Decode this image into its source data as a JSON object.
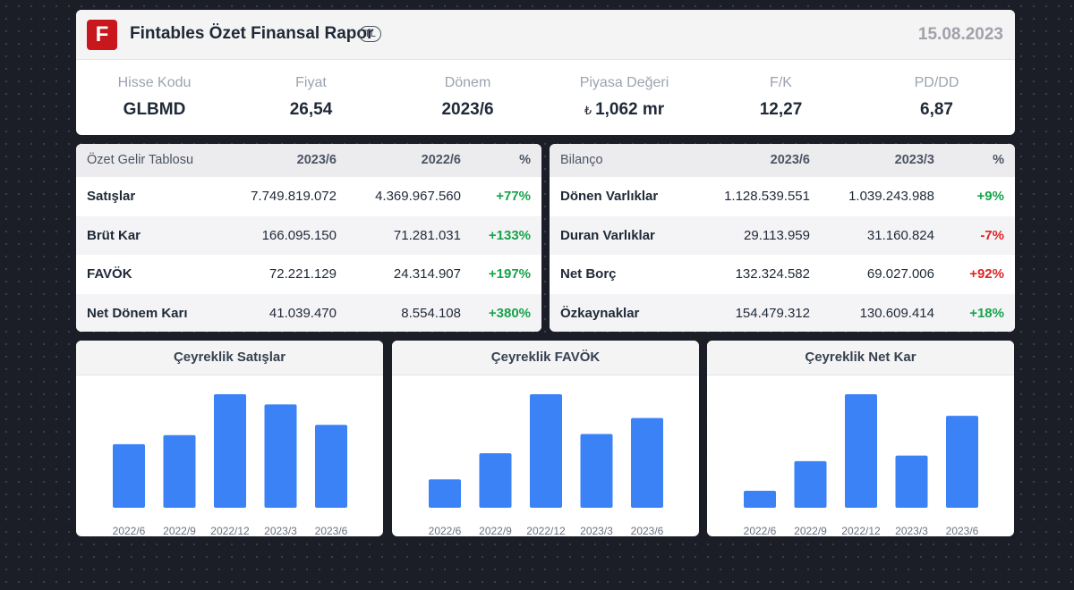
{
  "header": {
    "logo_letter": "F",
    "title": "Fintables Özet Finansal Rapor",
    "currency": "TL",
    "date": "15.08.2023"
  },
  "metrics": [
    {
      "label": "Hisse Kodu",
      "value": "GLBMD"
    },
    {
      "label": "Fiyat",
      "value": "26,54"
    },
    {
      "label": "Dönem",
      "value": "2023/6"
    },
    {
      "label": "Piyasa Değeri",
      "prefix": "₺",
      "value": "1,062 mr"
    },
    {
      "label": "F/K",
      "value": "12,27"
    },
    {
      "label": "PD/DD",
      "value": "6,87"
    }
  ],
  "income_table": {
    "headers": [
      "Özet Gelir Tablosu",
      "2023/6",
      "2022/6",
      "%"
    ],
    "rows": [
      [
        "Satışlar",
        "7.749.819.072",
        "4.369.967.560",
        "+77%"
      ],
      [
        "Brüt Kar",
        "166.095.150",
        "71.281.031",
        "+133%"
      ],
      [
        "FAVÖK",
        "72.221.129",
        "24.314.907",
        "+197%"
      ],
      [
        "Net Dönem Karı",
        "41.039.470",
        "8.554.108",
        "+380%"
      ]
    ]
  },
  "balance_table": {
    "headers": [
      "Bilanço",
      "2023/6",
      "2023/3",
      "%"
    ],
    "rows": [
      [
        "Dönen Varlıklar",
        "1.128.539.551",
        "1.039.243.988",
        "+9%"
      ],
      [
        "Duran Varlıklar",
        "29.113.959",
        "31.160.824",
        "-7%"
      ],
      [
        "Net Borç",
        "132.324.582",
        "69.027.006",
        "+92%"
      ],
      [
        "Özkaynaklar",
        "154.479.312",
        "130.609.414",
        "+18%"
      ]
    ]
  },
  "colors": {
    "bar": "#3b82f6",
    "positive": "#16a34a",
    "negative": "#dc2626",
    "brand": "#c8181e"
  },
  "chart_data": [
    {
      "type": "bar",
      "title": "Çeyreklik Satışlar",
      "categories": [
        "2022/6",
        "2022/9",
        "2022/12",
        "2023/3",
        "2023/6"
      ],
      "values": [
        56,
        64,
        100,
        91,
        73
      ],
      "ylim": [
        0,
        100
      ]
    },
    {
      "type": "bar",
      "title": "Çeyreklik FAVÖK",
      "categories": [
        "2022/6",
        "2022/9",
        "2022/12",
        "2023/3",
        "2023/6"
      ],
      "values": [
        25,
        48,
        100,
        65,
        79
      ],
      "ylim": [
        0,
        100
      ]
    },
    {
      "type": "bar",
      "title": "Çeyreklik Net Kar",
      "categories": [
        "2022/6",
        "2022/9",
        "2022/12",
        "2023/3",
        "2023/6"
      ],
      "values": [
        15,
        41,
        100,
        46,
        81
      ],
      "ylim": [
        0,
        100
      ]
    }
  ]
}
